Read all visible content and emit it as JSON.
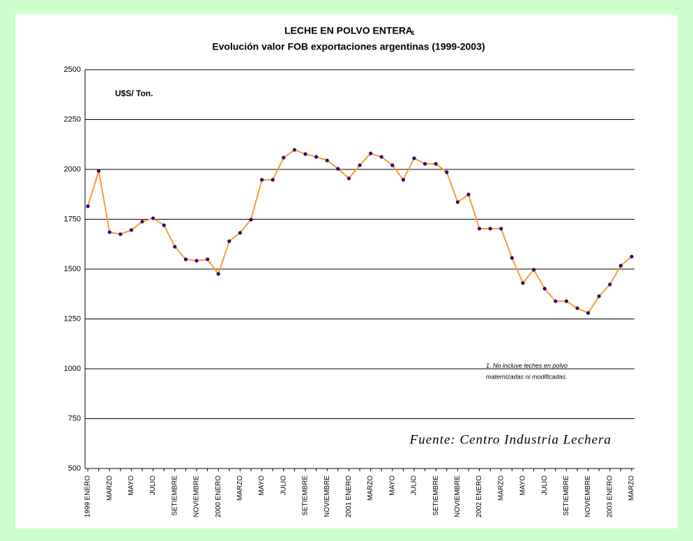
{
  "chart_data": {
    "type": "line",
    "title": "LECHE EN POLVO ENTERA",
    "title_note": "1",
    "subtitle": "Evolución valor FOB exportaciones argentinas (1999-2003)",
    "y_unit_label": "U$S/ Ton.",
    "footnote": [
      "1.  No incluye leches en polvo",
      "maternizadas ni modificadas."
    ],
    "source": "Fuente: Centro Industria Lechera",
    "categories": [
      "ENERO",
      null,
      "MARZO",
      null,
      "MAYO",
      null,
      "JULIO",
      null,
      "SETIEMBRE",
      null,
      "NOVIEMBRE",
      null,
      "ENERO",
      null,
      "MARZO",
      null,
      "MAYO",
      null,
      "JULIO",
      null,
      "SETIEMBRE",
      null,
      "NOVIEMBRE",
      null,
      "ENERO",
      null,
      "MARZO",
      null,
      "MAYO",
      null,
      "JULIO",
      null,
      "SETIEMBRE",
      null,
      "NOVIEMBRE",
      null,
      "ENERO",
      null,
      "MARZO",
      null,
      "MAYO",
      null,
      "JULIO",
      null,
      "SETIEMBRE",
      null,
      "NOVIEMBRE",
      null,
      "ENERO",
      null,
      "MARZO"
    ],
    "year_labels": [
      "1999",
      null,
      null,
      null,
      null,
      null,
      null,
      null,
      null,
      null,
      null,
      null,
      "2000",
      null,
      null,
      null,
      null,
      null,
      null,
      null,
      null,
      null,
      null,
      null,
      "2001",
      null,
      null,
      null,
      null,
      null,
      null,
      null,
      null,
      null,
      null,
      null,
      "2002",
      null,
      null,
      null,
      null,
      null,
      null,
      null,
      null,
      null,
      null,
      null,
      "2003",
      null,
      null
    ],
    "series": [
      {
        "name": "U$S/ Ton.",
        "color": "#ff9933",
        "marker_color": "#330066",
        "values": [
          1815,
          1993,
          1685,
          1675,
          1696,
          1738,
          1755,
          1720,
          1612,
          1549,
          1542,
          1549,
          1476,
          1640,
          1682,
          1748,
          1948,
          1948,
          2059,
          2098,
          2077,
          2063,
          2045,
          2003,
          1955,
          2021,
          2080,
          2063,
          2021,
          1948,
          2056,
          2028,
          2028,
          1986,
          1836,
          1874,
          1703,
          1703,
          1703,
          1556,
          1430,
          1497,
          1402,
          1339,
          1339,
          1304,
          1280,
          1364,
          1423,
          1517,
          1563
        ]
      }
    ],
    "ylim": [
      500,
      2500
    ],
    "yticks": [
      500,
      750,
      1000,
      1250,
      1500,
      1750,
      2000,
      2250,
      2500
    ],
    "grid": true
  }
}
